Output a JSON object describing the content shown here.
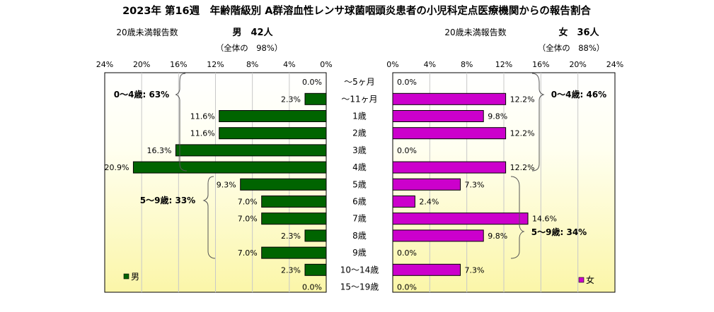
{
  "title": "2023年 第16週　年齢階級別 A群溶血性レンサ球菌咽頭炎患者の小児科定点医療機関からの報告割合",
  "left": {
    "under20_label": "20歳未満報告数",
    "sex_count": "男　42人",
    "overall_share": "（全体の　98%）",
    "legend": "男",
    "group_labels": [
      "0～4歳: 63%",
      "5～9歳: 33%"
    ]
  },
  "right": {
    "under20_label": "20歳未満報告数",
    "sex_count": "女　36人",
    "overall_share": "（全体の　88%）",
    "legend": "女",
    "group_labels": [
      "0～4歳: 46%",
      "5～9歳: 34%"
    ]
  },
  "chart_data": {
    "type": "bar",
    "orientation": "horizontal-butterfly",
    "categories": [
      "～5ヶ月",
      "～11ヶ月",
      "1歳",
      "2歳",
      "3歳",
      "4歳",
      "5歳",
      "6歳",
      "7歳",
      "8歳",
      "9歳",
      "10～14歳",
      "15～19歳"
    ],
    "series": [
      {
        "name": "男",
        "values": [
          0.0,
          2.3,
          11.6,
          11.6,
          16.3,
          20.9,
          9.3,
          7.0,
          7.0,
          2.3,
          7.0,
          2.3,
          0.0
        ],
        "color": "#006400"
      },
      {
        "name": "女",
        "values": [
          0.0,
          12.2,
          9.8,
          12.2,
          0.0,
          12.2,
          7.3,
          2.4,
          14.6,
          9.8,
          0.0,
          7.3,
          0.0
        ],
        "color": "#cc00cc"
      }
    ],
    "value_labels_male": [
      "0.0%",
      "2.3%",
      "11.6%",
      "11.6%",
      "16.3%",
      "20.9%",
      "9.3%",
      "7.0%",
      "7.0%",
      "2.3%",
      "7.0%",
      "2.3%",
      "0.0%"
    ],
    "value_labels_female": [
      "0.0%",
      "12.2%",
      "9.8%",
      "12.2%",
      "0.0%",
      "12.2%",
      "7.3%",
      "2.4%",
      "14.6%",
      "9.8%",
      "0.0%",
      "7.3%",
      "0.0%"
    ],
    "xlim": [
      0,
      24
    ],
    "ticks": [
      0,
      4,
      8,
      12,
      16,
      20,
      24
    ],
    "tick_labels": [
      "0%",
      "4%",
      "8%",
      "12%",
      "16%",
      "20%",
      "24%"
    ],
    "grid": true,
    "legend_position": "bottom-left / bottom-right",
    "background": "yellow-gradient"
  }
}
